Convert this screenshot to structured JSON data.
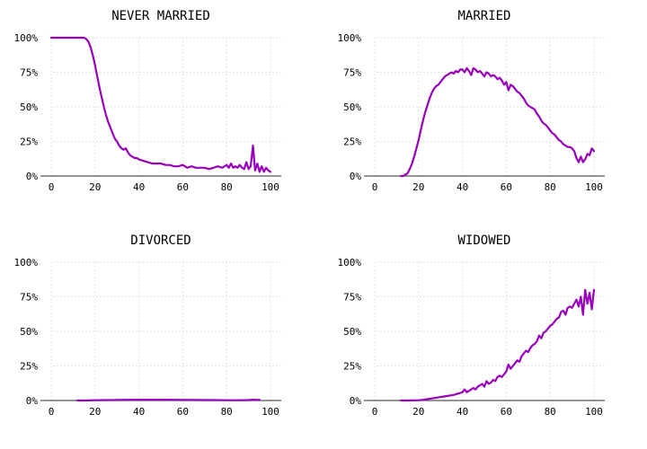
{
  "colors": {
    "line": "#9900bb",
    "grid": "#e3e3e3",
    "axis": "#555555",
    "background": "#ffffff"
  },
  "chart_data": [
    {
      "type": "line",
      "title": "NEVER MARRIED",
      "xlabel": "",
      "ylabel": "",
      "xlim": [
        0,
        100
      ],
      "ylim": [
        0,
        1
      ],
      "x_ticks": [
        "0",
        "20",
        "40",
        "60",
        "80",
        "100"
      ],
      "y_ticks": [
        "0%",
        "25%",
        "50%",
        "75%",
        "100%"
      ],
      "grid": true,
      "x": [
        0,
        2,
        4,
        6,
        8,
        10,
        12,
        14,
        15,
        16,
        17,
        18,
        19,
        20,
        21,
        22,
        23,
        24,
        25,
        26,
        27,
        28,
        29,
        30,
        31,
        32,
        33,
        34,
        35,
        36,
        37,
        38,
        39,
        40,
        42,
        44,
        46,
        48,
        50,
        52,
        54,
        56,
        58,
        60,
        62,
        64,
        66,
        68,
        70,
        72,
        74,
        76,
        78,
        80,
        81,
        82,
        83,
        84,
        85,
        86,
        87,
        88,
        89,
        90,
        91,
        92,
        93,
        94,
        95,
        96,
        97,
        98,
        99,
        100
      ],
      "y": [
        1.0,
        1.0,
        1.0,
        1.0,
        1.0,
        1.0,
        1.0,
        1.0,
        1.0,
        0.99,
        0.97,
        0.93,
        0.87,
        0.8,
        0.72,
        0.64,
        0.57,
        0.5,
        0.44,
        0.39,
        0.35,
        0.31,
        0.27,
        0.25,
        0.22,
        0.2,
        0.19,
        0.2,
        0.17,
        0.15,
        0.14,
        0.13,
        0.13,
        0.12,
        0.11,
        0.1,
        0.09,
        0.09,
        0.09,
        0.08,
        0.08,
        0.07,
        0.07,
        0.08,
        0.06,
        0.07,
        0.06,
        0.06,
        0.06,
        0.05,
        0.06,
        0.07,
        0.06,
        0.08,
        0.06,
        0.09,
        0.06,
        0.07,
        0.06,
        0.08,
        0.06,
        0.05,
        0.1,
        0.05,
        0.07,
        0.22,
        0.04,
        0.09,
        0.03,
        0.07,
        0.03,
        0.06,
        0.04,
        0.03
      ]
    },
    {
      "type": "line",
      "title": "MARRIED",
      "xlabel": "",
      "ylabel": "",
      "xlim": [
        0,
        100
      ],
      "ylim": [
        0,
        1
      ],
      "x_ticks": [
        "0",
        "20",
        "40",
        "60",
        "80",
        "100"
      ],
      "y_ticks": [
        "0%",
        "25%",
        "50%",
        "75%",
        "100%"
      ],
      "grid": true,
      "x": [
        12,
        13,
        14,
        15,
        16,
        17,
        18,
        19,
        20,
        21,
        22,
        23,
        24,
        25,
        26,
        27,
        28,
        29,
        30,
        31,
        32,
        33,
        34,
        35,
        36,
        37,
        38,
        39,
        40,
        41,
        42,
        43,
        44,
        45,
        46,
        47,
        48,
        49,
        50,
        51,
        52,
        53,
        54,
        55,
        56,
        57,
        58,
        59,
        60,
        61,
        62,
        63,
        64,
        65,
        66,
        67,
        68,
        69,
        70,
        71,
        72,
        73,
        74,
        75,
        76,
        77,
        78,
        79,
        80,
        81,
        82,
        83,
        84,
        85,
        86,
        87,
        88,
        89,
        90,
        91,
        92,
        93,
        94,
        95,
        96,
        97,
        98,
        99,
        100
      ],
      "y": [
        0.0,
        0.0,
        0.01,
        0.02,
        0.05,
        0.09,
        0.14,
        0.2,
        0.26,
        0.33,
        0.4,
        0.46,
        0.51,
        0.56,
        0.6,
        0.63,
        0.65,
        0.66,
        0.68,
        0.7,
        0.72,
        0.73,
        0.74,
        0.75,
        0.74,
        0.76,
        0.75,
        0.77,
        0.77,
        0.75,
        0.78,
        0.76,
        0.73,
        0.78,
        0.77,
        0.75,
        0.76,
        0.74,
        0.72,
        0.75,
        0.74,
        0.72,
        0.73,
        0.72,
        0.7,
        0.71,
        0.69,
        0.66,
        0.68,
        0.62,
        0.66,
        0.65,
        0.63,
        0.61,
        0.6,
        0.58,
        0.56,
        0.53,
        0.51,
        0.5,
        0.49,
        0.48,
        0.45,
        0.43,
        0.4,
        0.38,
        0.37,
        0.35,
        0.33,
        0.31,
        0.3,
        0.28,
        0.26,
        0.25,
        0.23,
        0.22,
        0.21,
        0.21,
        0.2,
        0.18,
        0.13,
        0.1,
        0.14,
        0.1,
        0.12,
        0.16,
        0.15,
        0.2,
        0.18
      ]
    },
    {
      "type": "line",
      "title": "DIVORCED",
      "xlabel": "",
      "ylabel": "",
      "xlim": [
        0,
        100
      ],
      "ylim": [
        0,
        1
      ],
      "x_ticks": [
        "0",
        "20",
        "40",
        "60",
        "80",
        "100"
      ],
      "y_ticks": [
        "0%",
        "25%",
        "50%",
        "75%",
        "100%"
      ],
      "grid": true,
      "x": [
        12,
        15,
        20,
        25,
        30,
        35,
        40,
        45,
        50,
        55,
        60,
        65,
        70,
        75,
        80,
        85,
        90,
        92,
        94,
        95
      ],
      "y": [
        0.0,
        0.0,
        0.002,
        0.003,
        0.004,
        0.005,
        0.006,
        0.005,
        0.006,
        0.005,
        0.004,
        0.004,
        0.003,
        0.003,
        0.002,
        0.002,
        0.003,
        0.006,
        0.004,
        0.005
      ]
    },
    {
      "type": "line",
      "title": "WIDOWED",
      "xlabel": "",
      "ylabel": "",
      "xlim": [
        0,
        100
      ],
      "ylim": [
        0,
        1
      ],
      "x_ticks": [
        "0",
        "20",
        "40",
        "60",
        "80",
        "100"
      ],
      "y_ticks": [
        "0%",
        "25%",
        "50%",
        "75%",
        "100%"
      ],
      "grid": true,
      "x": [
        12,
        15,
        20,
        22,
        24,
        26,
        28,
        30,
        32,
        34,
        36,
        38,
        40,
        41,
        42,
        43,
        44,
        45,
        46,
        47,
        48,
        49,
        50,
        51,
        52,
        53,
        54,
        55,
        56,
        57,
        58,
        59,
        60,
        61,
        62,
        63,
        64,
        65,
        66,
        67,
        68,
        69,
        70,
        71,
        72,
        73,
        74,
        75,
        76,
        77,
        78,
        79,
        80,
        81,
        82,
        83,
        84,
        85,
        86,
        87,
        88,
        89,
        90,
        91,
        92,
        93,
        94,
        95,
        96,
        97,
        98,
        99,
        100
      ],
      "y": [
        0.0,
        0.0,
        0.002,
        0.005,
        0.01,
        0.015,
        0.02,
        0.025,
        0.03,
        0.035,
        0.04,
        0.05,
        0.06,
        0.08,
        0.06,
        0.07,
        0.08,
        0.09,
        0.08,
        0.1,
        0.11,
        0.12,
        0.1,
        0.14,
        0.12,
        0.13,
        0.15,
        0.14,
        0.17,
        0.18,
        0.17,
        0.19,
        0.21,
        0.26,
        0.23,
        0.25,
        0.27,
        0.29,
        0.28,
        0.32,
        0.34,
        0.36,
        0.35,
        0.38,
        0.4,
        0.41,
        0.43,
        0.47,
        0.45,
        0.49,
        0.5,
        0.52,
        0.54,
        0.55,
        0.57,
        0.59,
        0.6,
        0.64,
        0.65,
        0.62,
        0.67,
        0.68,
        0.67,
        0.7,
        0.73,
        0.68,
        0.75,
        0.62,
        0.8,
        0.7,
        0.78,
        0.66,
        0.8
      ]
    }
  ]
}
